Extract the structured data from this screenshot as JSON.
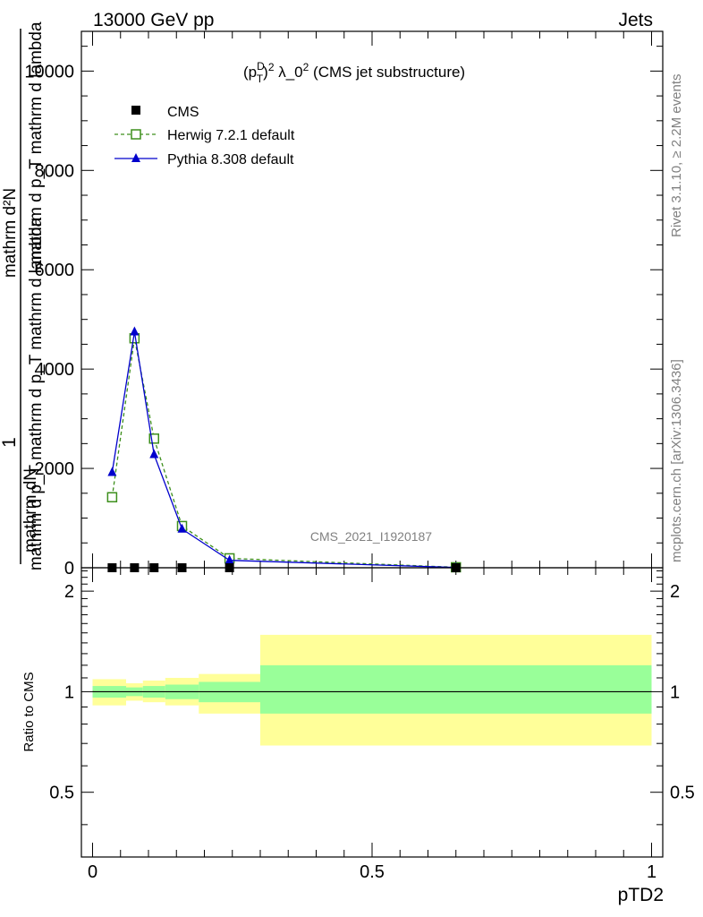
{
  "header": {
    "left": "13000 GeV pp",
    "right": "Jets"
  },
  "side_labels": {
    "rivet": "Rivet 3.1.10, ≥ 2.2M events",
    "mcplots": "mcplots.cern.ch [arXiv:1306.3436]"
  },
  "watermark": "CMS_2021_I1920187",
  "colors": {
    "cms": "#000000",
    "herwig": "#3d8f1c",
    "pythia": "#0000cc",
    "band_inner": "#99ff99",
    "band_outer": "#ffff99"
  },
  "chart_data": [
    {
      "type": "line",
      "title": "(p_T^D)^2 λ_0^2 (CMS jet substructure)",
      "title_parts": {
        "a": "(p",
        "sup1": "D",
        "sub1": "T",
        "b": ")",
        "sup2": "2",
        "c": " λ_0",
        "sup3": "2",
        "d": " (CMS jet substructure)"
      },
      "ylabel_parts": {
        "one": "1",
        "frac_top": "mathrm d²N",
        "frac_top_lower": "mathrm dN",
        "frac_bottom_lower": "mathrm d p_T mathrm d p_T mathrm d lambda",
        "frac_bottom": "mathrm d p_T mathrm d lambda"
      },
      "ylabel_lines": [
        "mathrm d²N",
        "mathrm d p",
        "T",
        "mathrm d lambda",
        "1",
        "mathrm dN / mathrm d p",
        "T",
        "mathrm d p",
        "T",
        "mathrm d lambda"
      ],
      "ylim": [
        0,
        10800
      ],
      "xlim": [
        -0.02,
        1.02
      ],
      "yticks": [
        0,
        2000,
        4000,
        6000,
        8000,
        10000
      ],
      "ytick_labels": [
        "0",
        "2000",
        "4000",
        "6000",
        "8000",
        "10000"
      ],
      "legend_position": "top-left",
      "series": [
        {
          "name": "CMS",
          "marker": "square-filled",
          "x": [
            0.035,
            0.075,
            0.11,
            0.16,
            0.245,
            0.65
          ],
          "y": [
            0,
            0,
            0,
            0,
            0,
            0
          ]
        },
        {
          "name": "Herwig 7.2.1 default",
          "marker": "square-open",
          "dashed": true,
          "x": [
            0.035,
            0.075,
            0.11,
            0.16,
            0.245,
            0.65
          ],
          "y": [
            1420,
            4620,
            2600,
            840,
            190,
            10
          ]
        },
        {
          "name": "Pythia 8.308 default",
          "marker": "triangle",
          "dashed": false,
          "x": [
            0.035,
            0.075,
            0.11,
            0.16,
            0.245,
            0.65
          ],
          "y": [
            1920,
            4750,
            2280,
            780,
            150,
            5
          ]
        }
      ]
    },
    {
      "type": "area",
      "xlabel": "pTD2",
      "ylabel": "Ratio to CMS",
      "xlim": [
        -0.02,
        1.02
      ],
      "ylim": [
        0.32,
        2.35
      ],
      "yticks": [
        0.5,
        1,
        2
      ],
      "ytick_labels": [
        "0.5",
        "1",
        "2"
      ],
      "xticks": [
        0,
        0.5,
        1
      ],
      "xtick_labels": [
        "0",
        "0.5",
        "1"
      ],
      "bins": [
        {
          "lo": 0.0,
          "hi": 0.06,
          "inner": [
            0.96,
            1.04
          ],
          "outer": [
            0.91,
            1.09
          ]
        },
        {
          "lo": 0.06,
          "hi": 0.09,
          "inner": [
            0.97,
            1.03
          ],
          "outer": [
            0.94,
            1.06
          ]
        },
        {
          "lo": 0.09,
          "hi": 0.13,
          "inner": [
            0.96,
            1.04
          ],
          "outer": [
            0.93,
            1.08
          ]
        },
        {
          "lo": 0.13,
          "hi": 0.19,
          "inner": [
            0.95,
            1.05
          ],
          "outer": [
            0.91,
            1.1
          ]
        },
        {
          "lo": 0.19,
          "hi": 0.3,
          "inner": [
            0.93,
            1.07
          ],
          "outer": [
            0.86,
            1.13
          ]
        },
        {
          "lo": 0.3,
          "hi": 1.0,
          "inner": [
            0.86,
            1.2
          ],
          "outer": [
            0.69,
            1.48
          ]
        }
      ]
    }
  ]
}
